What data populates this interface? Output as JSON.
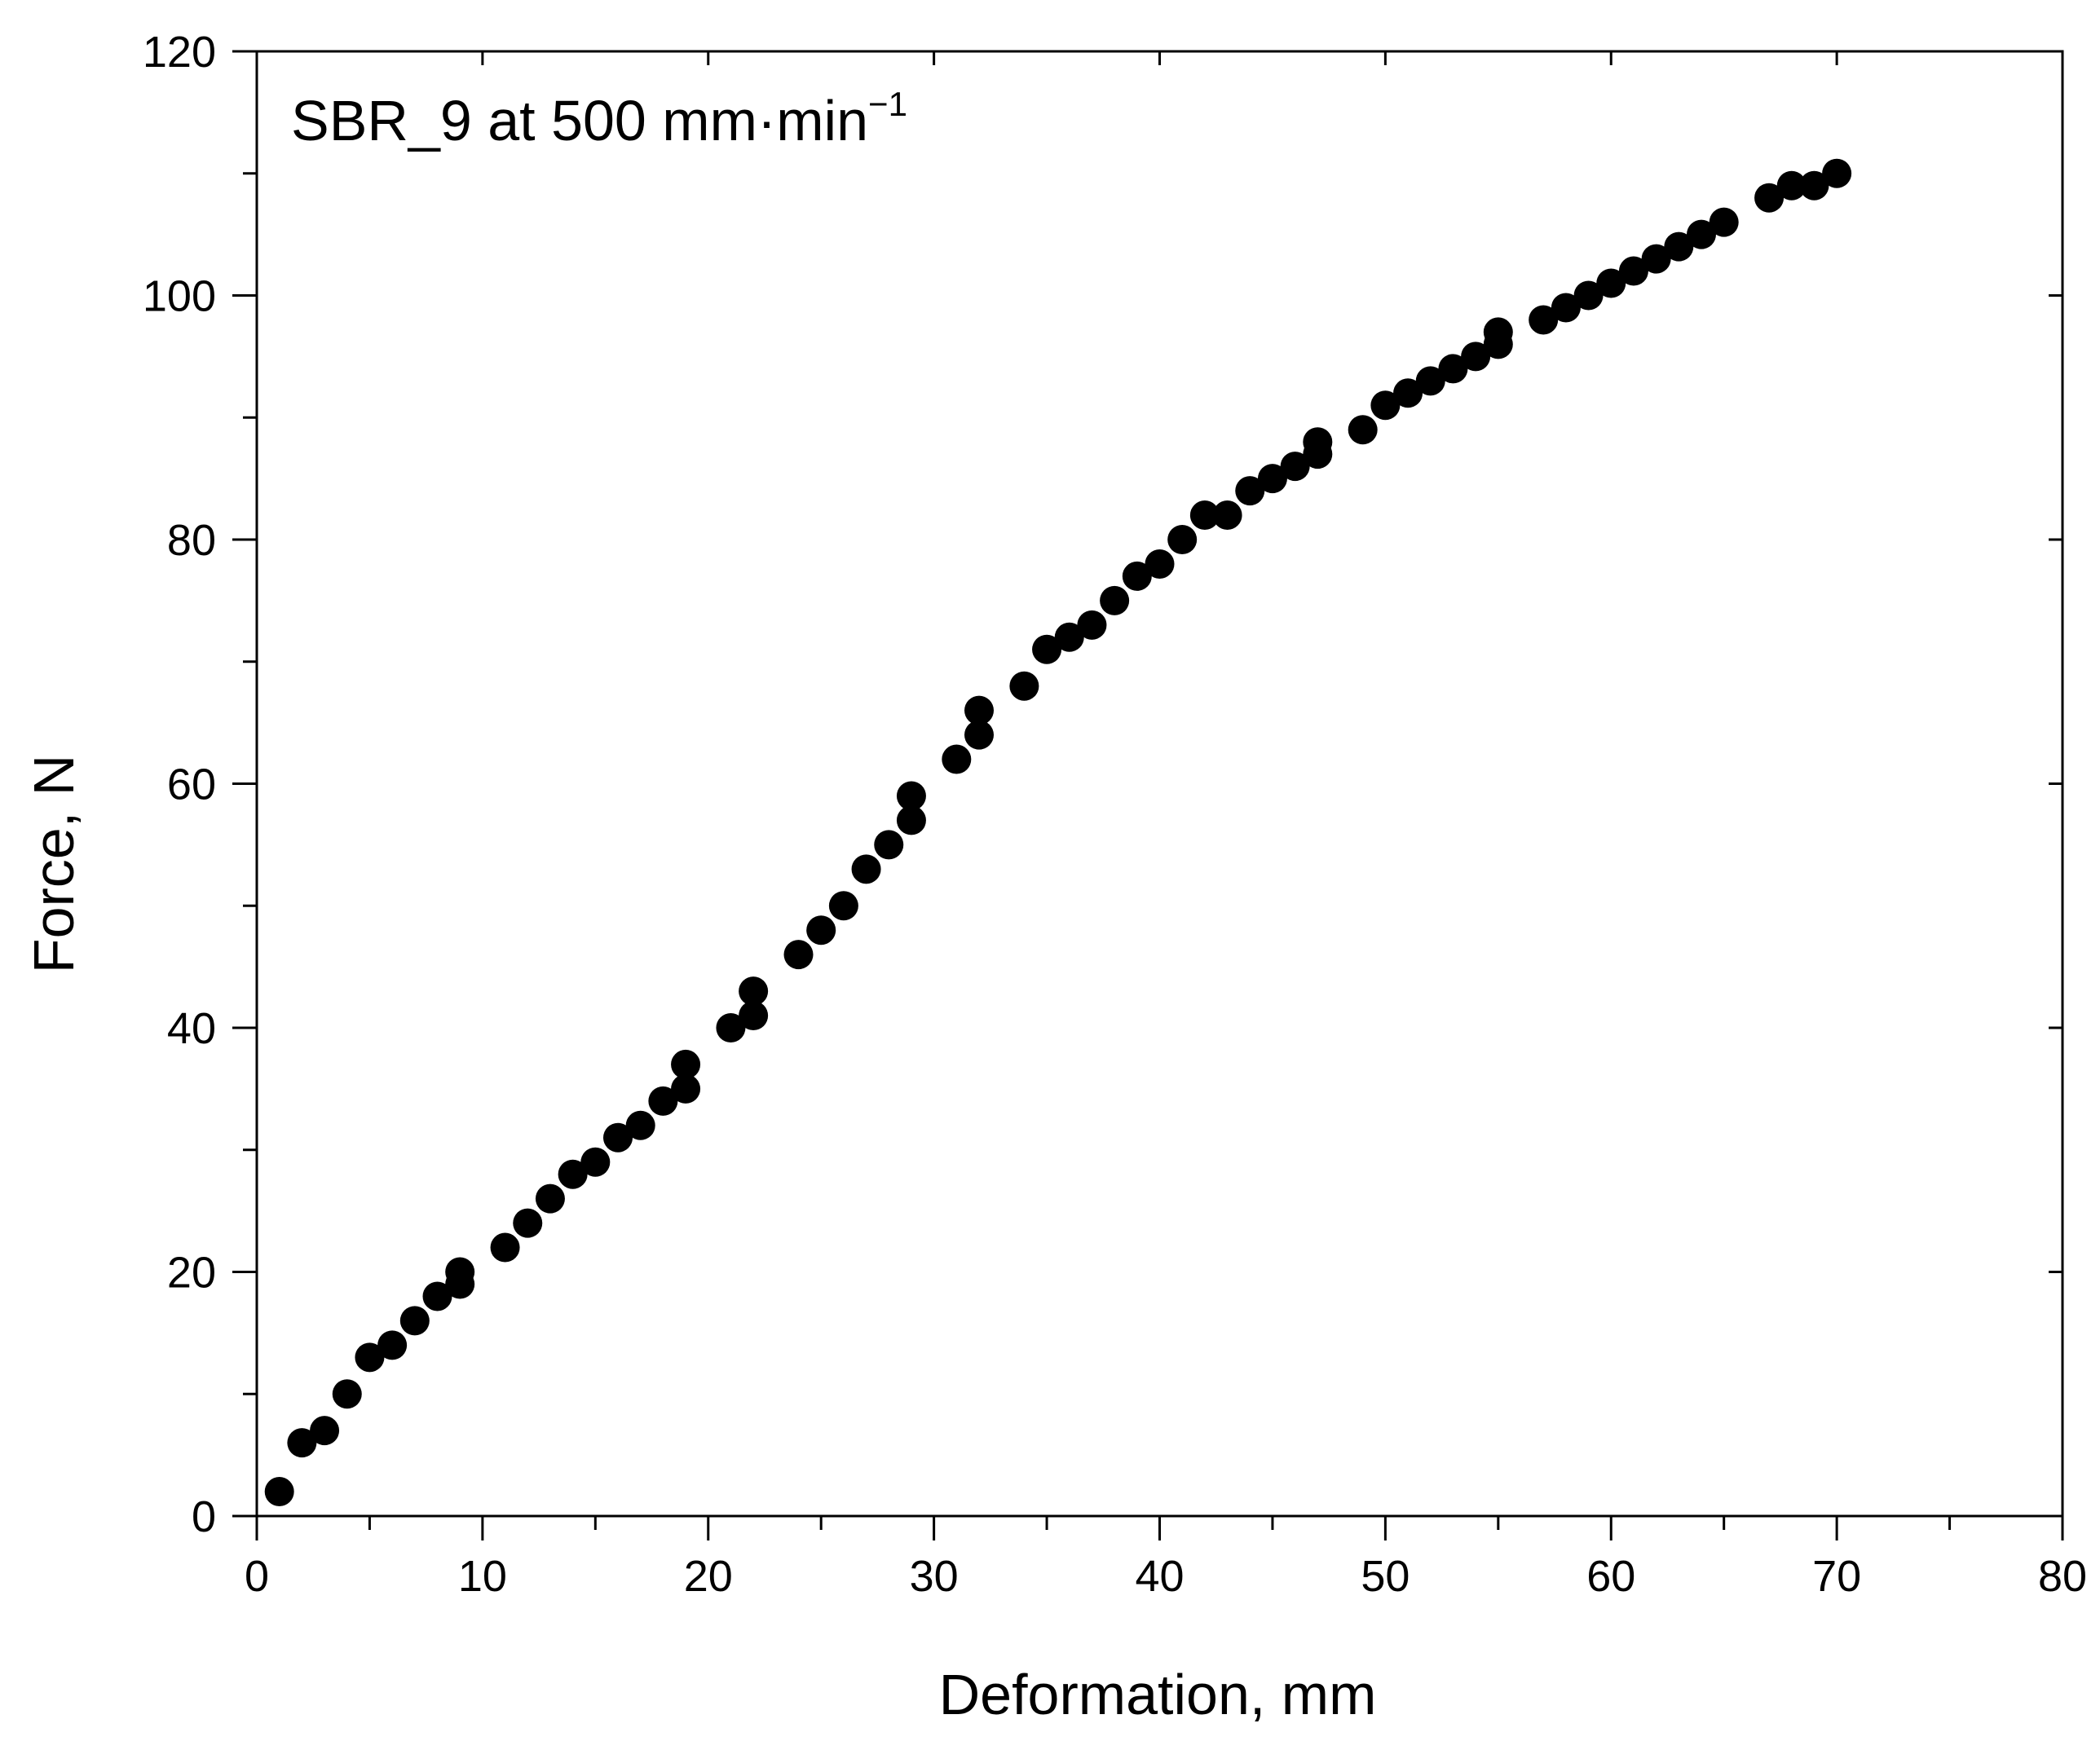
{
  "chart_data": {
    "type": "scatter",
    "title": "",
    "annotation": {
      "text": "SBR_9 at 500 mm·min",
      "superscript": "−1"
    },
    "xlabel": "Deformation, mm",
    "ylabel": "Force, N",
    "xlim": [
      0,
      80
    ],
    "ylim": [
      0,
      120
    ],
    "x_major_ticks": [
      0,
      10,
      20,
      30,
      40,
      50,
      60,
      70,
      80
    ],
    "x_minor_ticks": [
      5,
      15,
      25,
      35,
      45,
      55,
      65,
      75
    ],
    "y_major_ticks": [
      0,
      20,
      40,
      60,
      80,
      100,
      120
    ],
    "y_minor_ticks": [
      10,
      30,
      50,
      70,
      90,
      110
    ],
    "x_tick_labels": [
      "0",
      "10",
      "20",
      "30",
      "40",
      "50",
      "60",
      "70",
      "80"
    ],
    "y_tick_labels": [
      "0",
      "20",
      "40",
      "60",
      "80",
      "100",
      "120"
    ],
    "grid": false,
    "legend": "none",
    "series": [
      {
        "name": "SBR_9",
        "marker": "circle",
        "color": "#000000",
        "points": [
          [
            1,
            2
          ],
          [
            2,
            6
          ],
          [
            3,
            7
          ],
          [
            4,
            10
          ],
          [
            5,
            13
          ],
          [
            6,
            14
          ],
          [
            7,
            16
          ],
          [
            8,
            18
          ],
          [
            9,
            19
          ],
          [
            9,
            20
          ],
          [
            11,
            22
          ],
          [
            12,
            24
          ],
          [
            13,
            26
          ],
          [
            14,
            28
          ],
          [
            15,
            29
          ],
          [
            16,
            31
          ],
          [
            17,
            32
          ],
          [
            18,
            34
          ],
          [
            19,
            35
          ],
          [
            19,
            37
          ],
          [
            21,
            40
          ],
          [
            22,
            41
          ],
          [
            22,
            43
          ],
          [
            24,
            46
          ],
          [
            25,
            48
          ],
          [
            26,
            50
          ],
          [
            27,
            53
          ],
          [
            28,
            55
          ],
          [
            29,
            57
          ],
          [
            29,
            59
          ],
          [
            31,
            62
          ],
          [
            32,
            64
          ],
          [
            32,
            66
          ],
          [
            34,
            68
          ],
          [
            35,
            71
          ],
          [
            36,
            72
          ],
          [
            37,
            73
          ],
          [
            38,
            75
          ],
          [
            39,
            77
          ],
          [
            40,
            78
          ],
          [
            41,
            80
          ],
          [
            42,
            82
          ],
          [
            43,
            82
          ],
          [
            44,
            84
          ],
          [
            45,
            85
          ],
          [
            46,
            86
          ],
          [
            47,
            87
          ],
          [
            47,
            88
          ],
          [
            49,
            89
          ],
          [
            50,
            91
          ],
          [
            51,
            92
          ],
          [
            52,
            93
          ],
          [
            53,
            94
          ],
          [
            54,
            95
          ],
          [
            55,
            96
          ],
          [
            55,
            97
          ],
          [
            57,
            98
          ],
          [
            58,
            99
          ],
          [
            59,
            100
          ],
          [
            60,
            101
          ],
          [
            61,
            102
          ],
          [
            62,
            103
          ],
          [
            63,
            104
          ],
          [
            64,
            105
          ],
          [
            65,
            106
          ],
          [
            67,
            108
          ],
          [
            68,
            109
          ],
          [
            69,
            109
          ],
          [
            70,
            110
          ]
        ]
      }
    ]
  }
}
